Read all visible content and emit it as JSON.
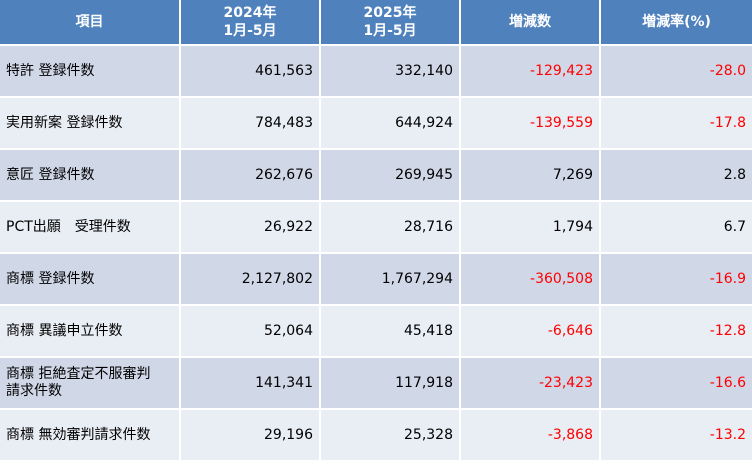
{
  "colors": {
    "header_bg": "#4f81bd",
    "row_odd": "#d0d8e8",
    "row_even": "#e9edf4",
    "negative": "#ff0000"
  },
  "header": {
    "item": "項目",
    "y2024_line1": "2024年",
    "y2024_line2": "1月-5月",
    "y2025_line1": "2025年",
    "y2025_line2": "1月-5月",
    "change": "増減数",
    "change_rate": "増減率(%)"
  },
  "rows": [
    {
      "label_line1": "特許 登録件数",
      "label_line2": "",
      "v2024": "461,563",
      "v2025": "332,140",
      "change": "-129,423",
      "rate": "-28.0"
    },
    {
      "label_line1": "実用新案 登録件数",
      "label_line2": "",
      "v2024": "784,483",
      "v2025": "644,924",
      "change": "-139,559",
      "rate": "-17.8"
    },
    {
      "label_line1": "意匠 登録件数",
      "label_line2": "",
      "v2024": "262,676",
      "v2025": "269,945",
      "change": "7,269",
      "rate": "2.8"
    },
    {
      "label_line1": "PCT出願　受理件数",
      "label_line2": "",
      "v2024": "26,922",
      "v2025": "28,716",
      "change": "1,794",
      "rate": "6.7"
    },
    {
      "label_line1": "商標 登録件数",
      "label_line2": "",
      "v2024": "2,127,802",
      "v2025": "1,767,294",
      "change": "-360,508",
      "rate": "-16.9"
    },
    {
      "label_line1": "商標 異議申立件数",
      "label_line2": "",
      "v2024": "52,064",
      "v2025": "45,418",
      "change": "-6,646",
      "rate": "-12.8"
    },
    {
      "label_line1": "商標 拒絶査定不服審判",
      "label_line2": "請求件数",
      "v2024": "141,341",
      "v2025": "117,918",
      "change": "-23,423",
      "rate": "-16.6"
    },
    {
      "label_line1": "商標 無効審判請求件数",
      "label_line2": "",
      "v2024": "29,196",
      "v2025": "25,328",
      "change": "-3,868",
      "rate": "-13.2"
    }
  ]
}
